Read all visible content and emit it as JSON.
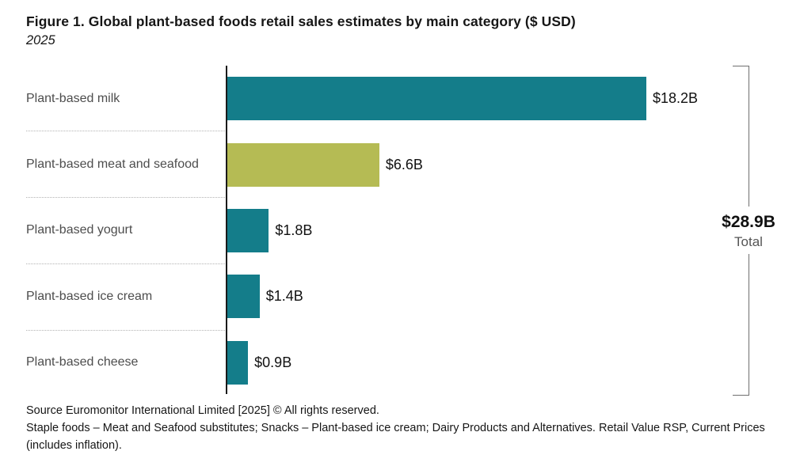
{
  "figure": {
    "title": "Figure 1. Global plant-based foods retail sales estimates by main category ($ USD)",
    "subtitle": "2025"
  },
  "chart_data": {
    "type": "bar",
    "orientation": "horizontal",
    "title": "Figure 1. Global plant-based foods retail sales estimates by main category ($ USD)",
    "subtitle": "2025",
    "categories": [
      "Plant-based milk",
      "Plant-based meat and seafood",
      "Plant-based yogurt",
      "Plant-based ice cream",
      "Plant-based cheese"
    ],
    "values": [
      18.2,
      6.6,
      1.8,
      1.4,
      0.9
    ],
    "value_labels": [
      "$18.2B",
      "$6.6B",
      "$1.8B",
      "$1.4B",
      "$0.9B"
    ],
    "unit": "$ USD billions",
    "xlim": [
      0,
      18.2
    ],
    "grid": false,
    "legend": false,
    "bar_colors": [
      "#147D8A",
      "#B5BB54",
      "#147D8A",
      "#147D8A",
      "#147D8A"
    ],
    "total": {
      "value": 28.9,
      "label": "$28.9B",
      "caption": "Total"
    }
  },
  "footer": {
    "source_line": "Source Euromonitor International Limited [2025] © All rights reserved.",
    "note_line": "Staple foods – Meat and Seafood substitutes; Snacks – Plant-based ice cream; Dairy Products and Alternatives. Retail Value RSP, Current Prices (includes inflation)."
  },
  "colors": {
    "teal": "#147D8A",
    "olive": "#B5BB54",
    "axis": "#1a1a1a",
    "category_label": "#4d4d4d",
    "bracket": "#6f6f6f",
    "text": "#161616"
  }
}
